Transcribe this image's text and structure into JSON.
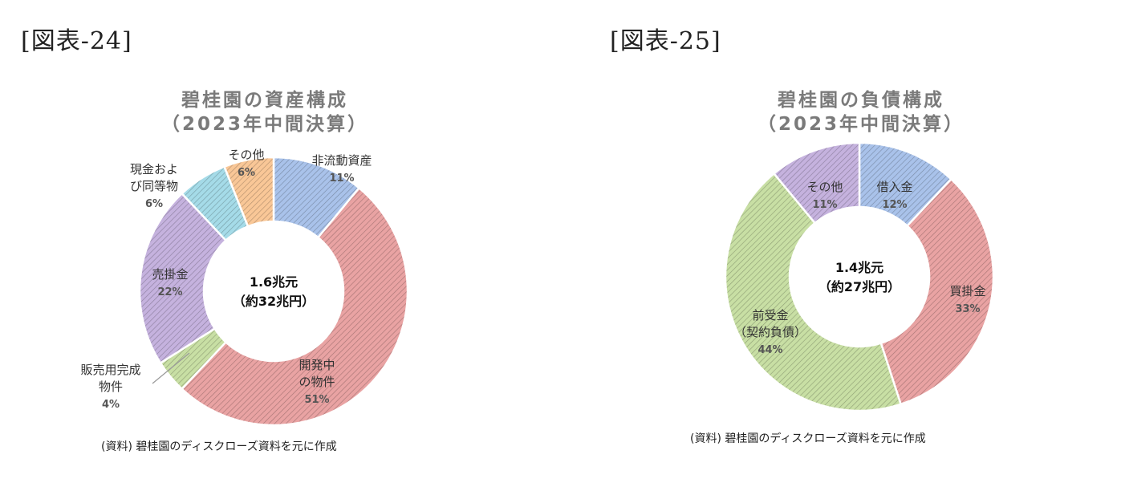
{
  "figures": [
    {
      "label": "[図表-24]",
      "source": "(資料) 碧桂園のディスクローズ資料を元に作成",
      "chart_data": {
        "type": "pie",
        "variant": "donut",
        "title": "碧桂園の資産構成",
        "subtitle": "（2023年中間決算）",
        "center_line1": "1.6兆元",
        "center_line2": "（約32兆円）",
        "slices": [
          {
            "label": "非流動資産",
            "value": 11,
            "value_label": "11%",
            "color": "#a9c2ea"
          },
          {
            "label": "開発中の物件",
            "value": 51,
            "value_label": "51%",
            "color": "#e9a3a3"
          },
          {
            "label": "販売用完成物件",
            "value": 4,
            "value_label": "4%",
            "color": "#c8dfa4"
          },
          {
            "label": "売掛金",
            "value": 22,
            "value_label": "22%",
            "color": "#c5b2de"
          },
          {
            "label": "現金および同等物",
            "value": 6,
            "value_label": "6%",
            "color": "#a5dbe8"
          },
          {
            "label": "その他",
            "value": 6,
            "value_label": "6%",
            "color": "#f9c797"
          }
        ]
      }
    },
    {
      "label": "[図表-25]",
      "source": "(資料) 碧桂園のディスクローズ資料を元に作成",
      "chart_data": {
        "type": "pie",
        "variant": "donut",
        "title": "碧桂園の負債構成",
        "subtitle": "（2023年中間決算）",
        "center_line1": "1.4兆元",
        "center_line2": "（約27兆円）",
        "slices": [
          {
            "label": "借入金",
            "value": 12,
            "value_label": "12%",
            "color": "#a9c2ea"
          },
          {
            "label": "買掛金",
            "value": 33,
            "value_label": "33%",
            "color": "#e9a3a3"
          },
          {
            "label": "前受金（契約負債）",
            "value": 44,
            "value_label": "44%",
            "color": "#c8dfa4"
          },
          {
            "label": "その他",
            "value": 11,
            "value_label": "11%",
            "color": "#c5b2de"
          }
        ]
      }
    }
  ]
}
